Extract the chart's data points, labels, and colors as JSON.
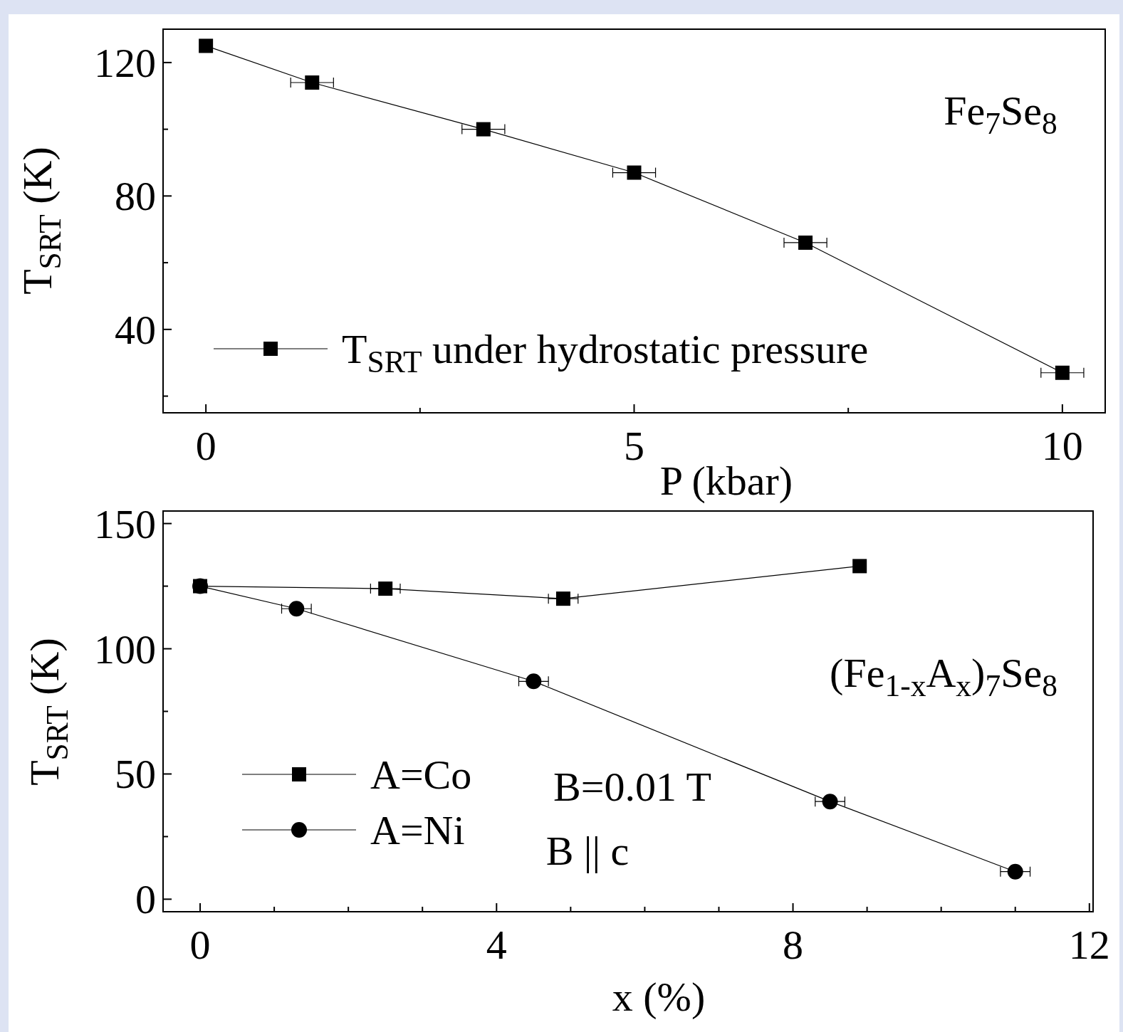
{
  "chart_data": [
    {
      "type": "line",
      "xlabel": "P (kbar)",
      "ylabel": "T$_{SRT}$ (K)",
      "xlim": [
        -0.5,
        10.5
      ],
      "ylim": [
        15,
        130
      ],
      "xticks": [
        0,
        {
          "value": 2.5,
          "label": null
        },
        5,
        {
          "value": 7.5,
          "label": null
        },
        10
      ],
      "yticks": [
        {
          "value": 20,
          "label": null
        },
        40,
        {
          "value": 60,
          "label": null
        },
        80,
        {
          "value": 100,
          "label": null
        },
        120
      ],
      "x": [
        0,
        1.24,
        3.24,
        5,
        7,
        10
      ],
      "series": [
        {
          "name": "T$_{SRT}$ under hydrostatic pressure",
          "color": "#000000",
          "marker": "square",
          "values": [
            125,
            114,
            100,
            87,
            66,
            27
          ],
          "xerrors": [
            null,
            0.25,
            0.25,
            0.25,
            0.25,
            0.25
          ]
        }
      ],
      "annotations": [
        "Fe$_{7}$Se$_{8}$"
      ],
      "legend": "bottom left",
      "grid": false
    },
    {
      "type": "line",
      "xlabel": "x (%)",
      "ylabel": "T$_{SRT}$ (K)",
      "xlim": [
        -0.5,
        12.05
      ],
      "ylim": [
        -5,
        155
      ],
      "xticks": [
        0,
        {
          "value": 1,
          "label": null
        },
        {
          "value": 2,
          "label": null
        },
        {
          "value": 3,
          "label": null
        },
        4,
        {
          "value": 5,
          "label": null
        },
        {
          "value": 6,
          "label": null
        },
        {
          "value": 7,
          "label": null
        },
        8,
        {
          "value": 9,
          "label": null
        },
        {
          "value": 10,
          "label": null
        },
        {
          "value": 11,
          "label": null
        },
        12
      ],
      "yticks": [
        0,
        {
          "value": 25,
          "label": null
        },
        50,
        {
          "value": 75,
          "label": null
        },
        100,
        {
          "value": 125,
          "label": null
        },
        150
      ],
      "series": [
        {
          "name": "A=Co",
          "color": "#000000",
          "marker": "square",
          "x": [
            0,
            2.5,
            4.9,
            8.9
          ],
          "values": [
            125,
            124,
            120,
            133
          ],
          "xerrors": [
            null,
            0.2,
            0.2,
            null
          ]
        },
        {
          "name": "A=Ni",
          "color": "#000000",
          "marker": "circle",
          "x": [
            0,
            1.3,
            4.5,
            8.5,
            11.0
          ],
          "values": [
            125,
            116,
            87,
            39,
            11
          ],
          "xerrors": [
            null,
            0.2,
            0.2,
            0.2,
            0.2
          ]
        }
      ],
      "annotations": [
        "(Fe$_{1-x}$A$_{x}$)$_{7}$Se$_{8}$",
        "B=0.01 T",
        "B || c"
      ],
      "legend": "bottom left",
      "grid": false
    }
  ]
}
